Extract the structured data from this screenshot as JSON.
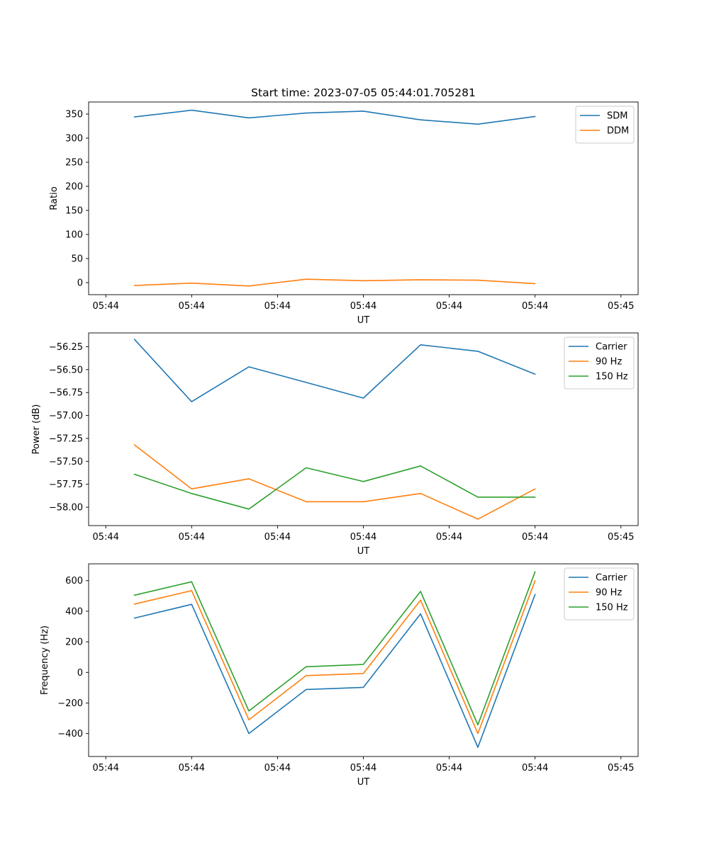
{
  "figure": {
    "title": "Start time: 2023-07-05 05:44:01.705281"
  },
  "chart_data": [
    {
      "type": "line",
      "title": "Start time: 2023-07-05 05:44:01.705281",
      "xlabel": "UT",
      "ylabel": "Ratio",
      "x": [
        0.5,
        1.5,
        2.5,
        3.5,
        4.5,
        5.5,
        6.5,
        7.5
      ],
      "xlim": [
        -0.3,
        9.3
      ],
      "xticks": [
        0,
        1.5,
        3,
        4.5,
        6,
        7.5,
        9
      ],
      "xtick_labels": [
        "05:44",
        "05:44",
        "05:44",
        "05:44",
        "05:44",
        "05:44",
        "05:45"
      ],
      "ylim": [
        -25,
        375
      ],
      "yticks": [
        0,
        50,
        100,
        150,
        200,
        250,
        300,
        350
      ],
      "ytick_labels": [
        "0",
        "50",
        "100",
        "150",
        "200",
        "250",
        "300",
        "350"
      ],
      "legend": "top-right",
      "series": [
        {
          "name": "SDM",
          "color": "#1f77b4",
          "values": [
            344,
            358,
            342,
            352,
            356,
            338,
            329,
            345
          ]
        },
        {
          "name": "DDM",
          "color": "#ff7f0e",
          "values": [
            -6,
            -1,
            -7,
            7,
            4,
            6,
            5,
            -2
          ]
        }
      ]
    },
    {
      "type": "line",
      "title": "",
      "xlabel": "UT",
      "ylabel": "Power (dB)",
      "x": [
        0.5,
        1.5,
        2.5,
        3.5,
        4.5,
        5.5,
        6.5,
        7.5
      ],
      "xlim": [
        -0.3,
        9.3
      ],
      "xticks": [
        0,
        1.5,
        3,
        4.5,
        6,
        7.5,
        9
      ],
      "xtick_labels": [
        "05:44",
        "05:44",
        "05:44",
        "05:44",
        "05:44",
        "05:44",
        "05:45"
      ],
      "ylim": [
        -58.2,
        -56.1
      ],
      "yticks": [
        -56.25,
        -56.5,
        -56.75,
        -57.0,
        -57.25,
        -57.5,
        -57.75,
        -58.0
      ],
      "ytick_labels": [
        "−56.25",
        "−56.50",
        "−56.75",
        "−57.00",
        "−57.25",
        "−57.50",
        "−57.75",
        "−58.00"
      ],
      "legend": "top-right",
      "series": [
        {
          "name": "Carrier",
          "color": "#1f77b4",
          "values": [
            -56.17,
            -56.85,
            -56.47,
            -56.64,
            -56.81,
            -56.23,
            -56.3,
            -56.55
          ]
        },
        {
          "name": "90 Hz",
          "color": "#ff7f0e",
          "values": [
            -57.32,
            -57.8,
            -57.69,
            -57.94,
            -57.94,
            -57.85,
            -58.13,
            -57.8
          ]
        },
        {
          "name": "150 Hz",
          "color": "#2ca02c",
          "values": [
            -57.64,
            -57.85,
            -58.02,
            -57.57,
            -57.72,
            -57.55,
            -57.89,
            -57.89
          ]
        }
      ]
    },
    {
      "type": "line",
      "title": "",
      "xlabel": "UT",
      "ylabel": "Frequency (Hz)",
      "x": [
        0.5,
        1.5,
        2.5,
        3.5,
        4.5,
        5.5,
        6.5,
        7.5
      ],
      "xlim": [
        -0.3,
        9.3
      ],
      "xticks": [
        0,
        1.5,
        3,
        4.5,
        6,
        7.5,
        9
      ],
      "xtick_labels": [
        "05:44",
        "05:44",
        "05:44",
        "05:44",
        "05:44",
        "05:44",
        "05:45"
      ],
      "ylim": [
        -550,
        710
      ],
      "yticks": [
        -400,
        -200,
        0,
        200,
        400,
        600
      ],
      "ytick_labels": [
        "−400",
        "−200",
        "0",
        "200",
        "400",
        "600"
      ],
      "legend": "top-right",
      "series": [
        {
          "name": "Carrier",
          "color": "#1f77b4",
          "values": [
            355,
            445,
            -400,
            -112,
            -98,
            383,
            -490,
            510
          ]
        },
        {
          "name": "90 Hz",
          "color": "#ff7f0e",
          "values": [
            447,
            535,
            -310,
            -21,
            -7,
            473,
            -400,
            600
          ]
        },
        {
          "name": "150 Hz",
          "color": "#2ca02c",
          "values": [
            505,
            593,
            -252,
            37,
            52,
            530,
            -343,
            658
          ]
        }
      ]
    }
  ]
}
